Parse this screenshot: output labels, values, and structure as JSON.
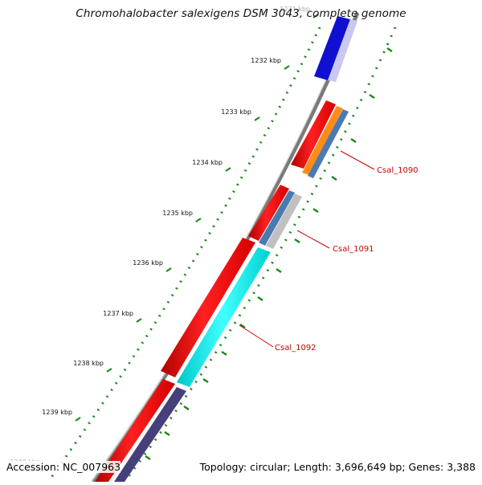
{
  "title": "Chromohalobacter salexigens DSM 3043, complete genome",
  "footer": {
    "accession": "Accession: NC_007963",
    "summary": "Topology: circular; Length: 3,696,649 bp; Genes: 3,388"
  },
  "ruler": {
    "unit_labels": [
      "1231 kbp",
      "1232 kbp",
      "1233 kbp",
      "1234 kbp",
      "1235 kbp",
      "1236 kbp",
      "1237 kbp",
      "1238 kbp",
      "1239 kbp",
      "1240 kbp"
    ],
    "start_kbp": 1231,
    "end_kbp": 1240
  },
  "genes": [
    {
      "name": "Csal_1090",
      "label_color": "#cc0000"
    },
    {
      "name": "Csal_1091",
      "label_color": "#cc0000"
    },
    {
      "name": "Csal_1092",
      "label_color": "#cc0000"
    }
  ],
  "colors": {
    "backbone": "#888888",
    "cds_forward": "#ff0000",
    "feature_blue": "#1010d0",
    "feature_orange": "#ff8c1a",
    "feature_steelblue": "#4a7ab0",
    "feature_gray": "#c0c0c0",
    "feature_cyan": "#00eeee",
    "feature_slate": "#45407a",
    "gc_skew": "#1a8a1a"
  }
}
